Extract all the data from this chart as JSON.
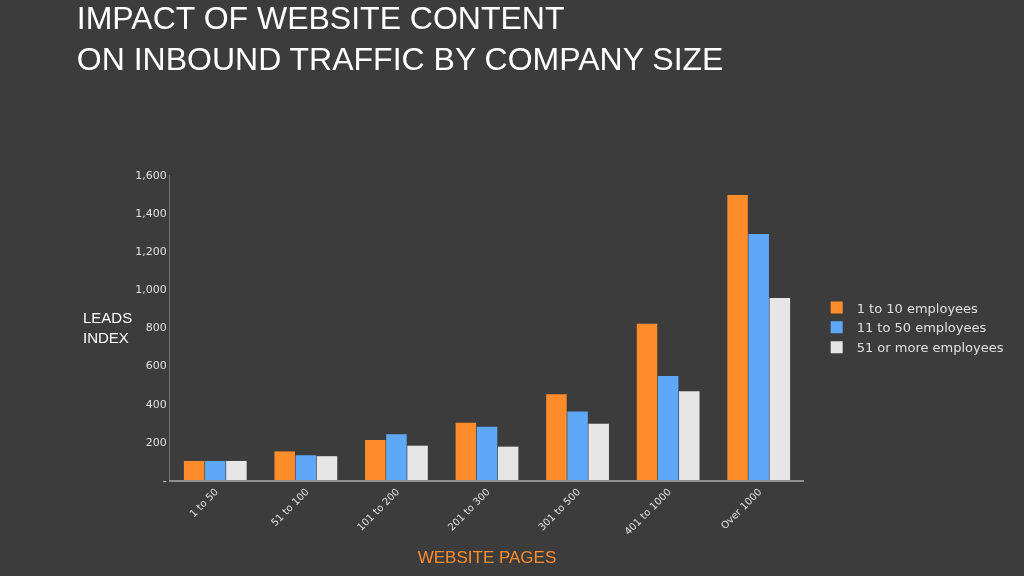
{
  "chart_data": {
    "type": "bar",
    "title": "IMPACT OF WEBSITE CONTENT\nON INBOUND TRAFFIC BY COMPANY SIZE",
    "xlabel": "WEBSITE PAGES",
    "ylabel": "LEADS\nINDEX",
    "categories": [
      "1 to 50",
      "51 to 100",
      "101 to 200",
      "201 to 300",
      "301 to 500",
      "401 to 1000",
      "Over 1000"
    ],
    "series": [
      {
        "name": "1 to 10 employees",
        "color": "#ff8c2a",
        "values": [
          100,
          150,
          210,
          300,
          450,
          820,
          1495
        ]
      },
      {
        "name": "11 to 50 employees",
        "color": "#5ea8f7",
        "values": [
          100,
          130,
          240,
          280,
          360,
          545,
          1290
        ]
      },
      {
        "name": "51 or more employees",
        "color": "#e6e6e6",
        "values": [
          100,
          125,
          180,
          175,
          295,
          465,
          955
        ]
      }
    ],
    "ylim": [
      0,
      1600
    ],
    "yticks": [
      {
        "value": 0,
        "label": "-"
      },
      200,
      400,
      600,
      800,
      {
        "value": 1000,
        "label": "1,000"
      },
      {
        "value": 1200,
        "label": "1,200"
      },
      {
        "value": 1400,
        "label": "1,400"
      },
      {
        "value": 1600,
        "label": "1,600"
      }
    ],
    "grid": false,
    "legend": "right"
  }
}
